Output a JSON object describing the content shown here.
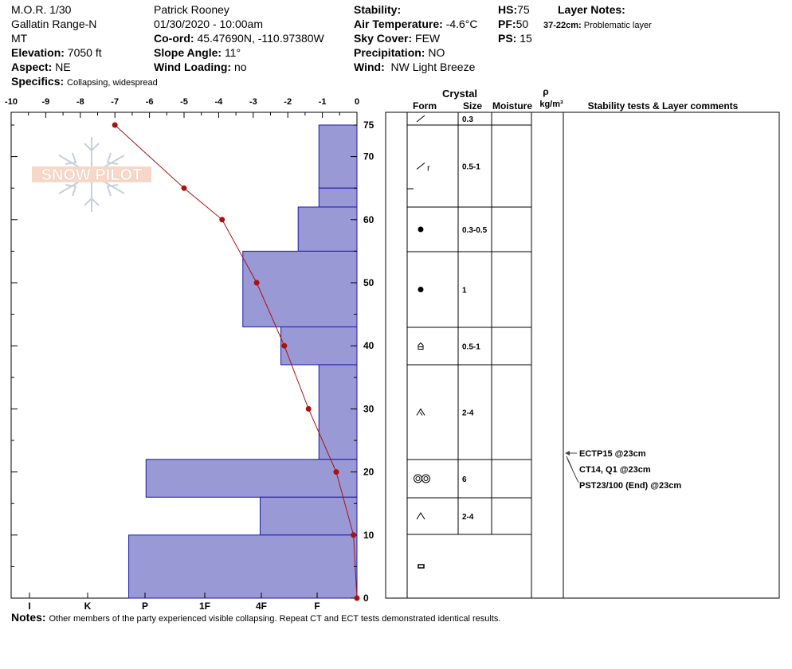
{
  "header": {
    "col1": {
      "location": "M.O.R. 1/30",
      "range": "Gallatin Range-N",
      "state": "MT",
      "elevation_label": "Elevation:",
      "elevation_value": "7050 ft",
      "aspect_label": "Aspect:",
      "aspect_value": "NE",
      "specifics_label": "Specifics:",
      "specifics_value": "Collapsing, widespread"
    },
    "col2": {
      "observer": "Patrick Rooney",
      "datetime": "01/30/2020 - 10:00am",
      "coord_label": "Co-ord:",
      "coord_value": "45.47690N, -110.97380W",
      "slope_label": "Slope Angle:",
      "slope_value": "11°",
      "wind_loading_label": "Wind Loading:",
      "wind_loading_value": "no"
    },
    "col3": {
      "stability_label": "Stability:",
      "stability_value": "",
      "air_temp_label": "Air Temperature:",
      "air_temp_value": "-4.6°C",
      "sky_label": "Sky Cover:",
      "sky_value": "FEW",
      "precip_label": "Precipitation:",
      "precip_value": "NO",
      "wind_label": "Wind:",
      "wind_value": "NW Light Breeze"
    },
    "col4": {
      "hs_label": "HS:",
      "hs_value": "75",
      "pf_label": "PF:",
      "pf_value": "50",
      "ps_label": "PS:",
      "ps_value": "15"
    },
    "layer_notes": {
      "label": "Layer Notes:",
      "range": "37-22cm:",
      "text": "Problematic layer"
    }
  },
  "logo_text": "SNOW PILOT",
  "notes": {
    "label": "Notes:",
    "text": "Other members of the party experienced visible collapsing. Repeat CT and ECT tests demonstrated identical results."
  },
  "table_headers": {
    "crystal": "Crystal",
    "form": "Form",
    "size": "Size",
    "moisture": "Moisture",
    "rho": "ρ",
    "density_unit": "kg/m³",
    "stability": "Stability tests & Layer comments"
  },
  "colors": {
    "hardness_fill": "#9999d6",
    "hardness_stroke": "#1a1aaa",
    "temp_line": "#aa1111"
  },
  "chart_data": {
    "type": "bar",
    "temp_axis": {
      "ticks": [
        "-10",
        "-9",
        "-8",
        "-7",
        "-6",
        "-5",
        "-4",
        "-3",
        "-2",
        "-1",
        "0"
      ],
      "range": [
        -10,
        0
      ]
    },
    "height_axis": {
      "ticks": [
        "0",
        "10",
        "20",
        "30",
        "40",
        "50",
        "60",
        "70",
        "75"
      ],
      "range": [
        0,
        75
      ]
    },
    "hardness_axis": {
      "ticks": [
        "I",
        "K",
        "P",
        "1F",
        "4F",
        "F"
      ]
    },
    "layers": [
      {
        "top": 75,
        "bottom": 65,
        "hardness": "F-",
        "form": "new-snow-icon",
        "size": "0.3"
      },
      {
        "top": 65,
        "bottom": 62,
        "hardness": "F-",
        "form": "new-snow-rimed-icon",
        "size": "0.5-1"
      },
      {
        "top": 62,
        "bottom": 55,
        "hardness": "F+",
        "form": "graupel-icon",
        "size": "0.3-0.5"
      },
      {
        "top": 55,
        "bottom": 43,
        "hardness": "4F",
        "form": "graupel-icon",
        "size": "1"
      },
      {
        "top": 43,
        "bottom": 37,
        "hardness": "4F+",
        "form": "faceted-icon",
        "size": "0.5-1"
      },
      {
        "top": 37,
        "bottom": 22,
        "hardness": "F-",
        "form": "depth-hoar-icon",
        "size": "2-4"
      },
      {
        "top": 22,
        "bottom": 16,
        "hardness": "P-",
        "form": "melt-form-icon",
        "size": "6"
      },
      {
        "top": 16,
        "bottom": 10,
        "hardness": "4F",
        "form": "depth-hoar-icon",
        "size": "2-4"
      },
      {
        "top": 10,
        "bottom": 0,
        "hardness": "P",
        "form": "ice-crust-icon",
        "size": ""
      }
    ],
    "bar_widths_temp_units": [
      -1.1,
      -1.1,
      -1.7,
      -3.3,
      -2.2,
      -1.1,
      -6.1,
      -2.8,
      -6.6
    ],
    "temperature_profile": [
      {
        "height": 75,
        "temp": -7.0
      },
      {
        "height": 65,
        "temp": -5.0
      },
      {
        "height": 60,
        "temp": -3.9
      },
      {
        "height": 50,
        "temp": -2.9
      },
      {
        "height": 40,
        "temp": -2.1
      },
      {
        "height": 30,
        "temp": -1.4
      },
      {
        "height": 20,
        "temp": -0.6
      },
      {
        "height": 10,
        "temp": -0.1
      },
      {
        "height": 0,
        "temp": 0.0
      }
    ],
    "stability_tests": [
      "ECTP15 @23cm",
      "CT14, Q1 @23cm",
      "PST23/100 (End) @23cm"
    ]
  }
}
